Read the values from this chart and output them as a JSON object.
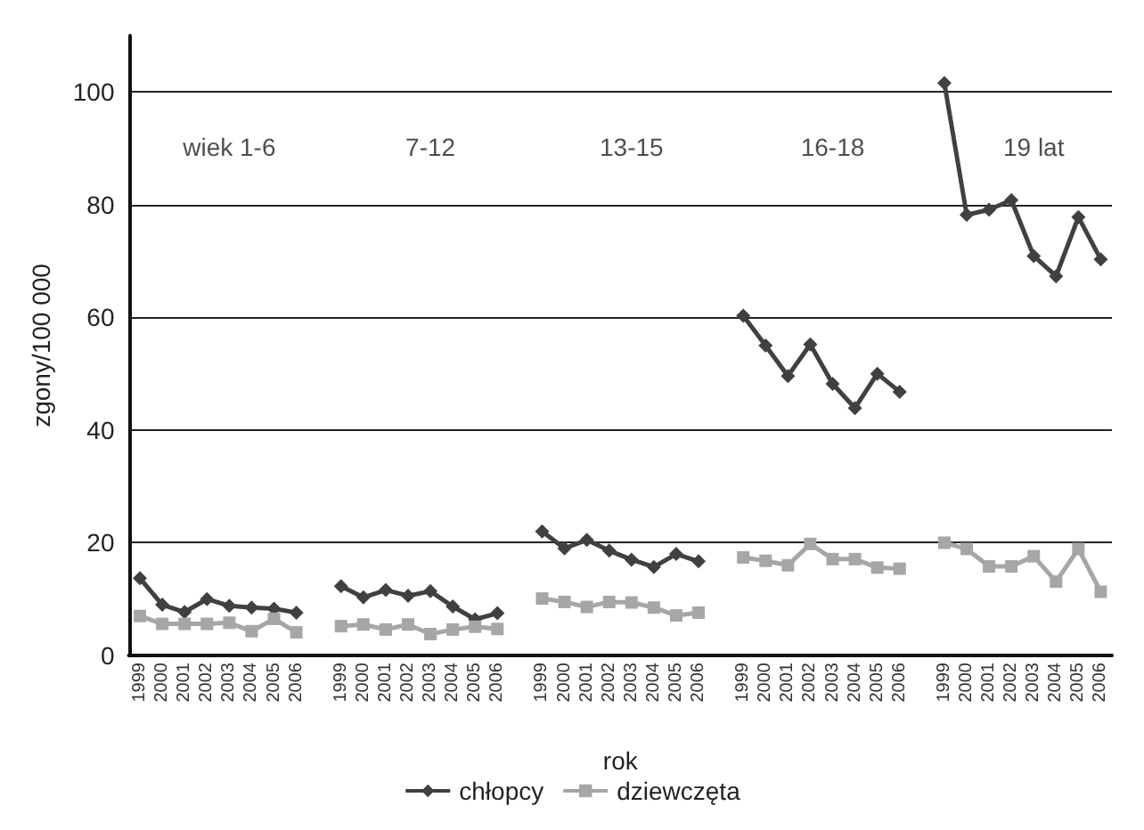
{
  "chart_data": {
    "type": "line",
    "xlabel": "rok",
    "ylabel": "zgony/100 000",
    "categories": [
      "1999",
      "2000",
      "2001",
      "2002",
      "2003",
      "2004",
      "2005",
      "2006",
      null,
      "1999",
      "2000",
      "2001",
      "2002",
      "2003",
      "2004",
      "2005",
      "2006",
      null,
      "1999",
      "2000",
      "2001",
      "2002",
      "2003",
      "2004",
      "2005",
      "2006",
      null,
      "1999",
      "2000",
      "2001",
      "2002",
      "2003",
      "2004",
      "2005",
      "2006",
      null,
      "1999",
      "2000",
      "2001",
      "2002",
      "2003",
      "2004",
      "2005",
      "2006"
    ],
    "series": [
      {
        "name": "chłopcy",
        "color": "#404040",
        "marker": "diamond",
        "values": [
          13.7,
          9,
          7.7,
          10,
          8.8,
          8.5,
          8.3,
          7.6,
          null,
          12.3,
          10.3,
          11.6,
          10.6,
          11.4,
          8.7,
          6.4,
          7.5,
          null,
          22,
          19,
          20.5,
          18.6,
          17,
          15.7,
          18,
          16.7,
          null,
          60.3,
          55,
          49.6,
          55.2,
          48.2,
          43.9,
          50,
          46.8,
          null,
          101.6,
          78.2,
          79.1,
          80.8,
          70.9,
          67.3,
          77.8,
          70.3
        ]
      },
      {
        "name": "dziewczęta",
        "color": "#a6a6a6",
        "marker": "square",
        "values": [
          7,
          5.6,
          5.6,
          5.6,
          5.8,
          4.3,
          6.5,
          4.1,
          null,
          5.2,
          5.5,
          4.6,
          5.5,
          3.8,
          4.6,
          5.1,
          4.7,
          null,
          10.1,
          9.5,
          8.6,
          9.5,
          9.4,
          8.5,
          7.1,
          7.6,
          null,
          17.4,
          16.8,
          16,
          19.8,
          17.1,
          17.1,
          15.6,
          15.4,
          null,
          20,
          18.9,
          15.8,
          15.8,
          17.6,
          13.1,
          18.9,
          11.3
        ]
      }
    ],
    "annotations": [
      "wiek 1-6",
      "7-12",
      "13-15",
      "16-18",
      "19 lat"
    ],
    "ylim": [
      0,
      110
    ],
    "yticks": [
      0,
      20,
      40,
      60,
      80,
      100
    ],
    "grid": "y",
    "legend": "bottom",
    "line_style": "solid"
  }
}
